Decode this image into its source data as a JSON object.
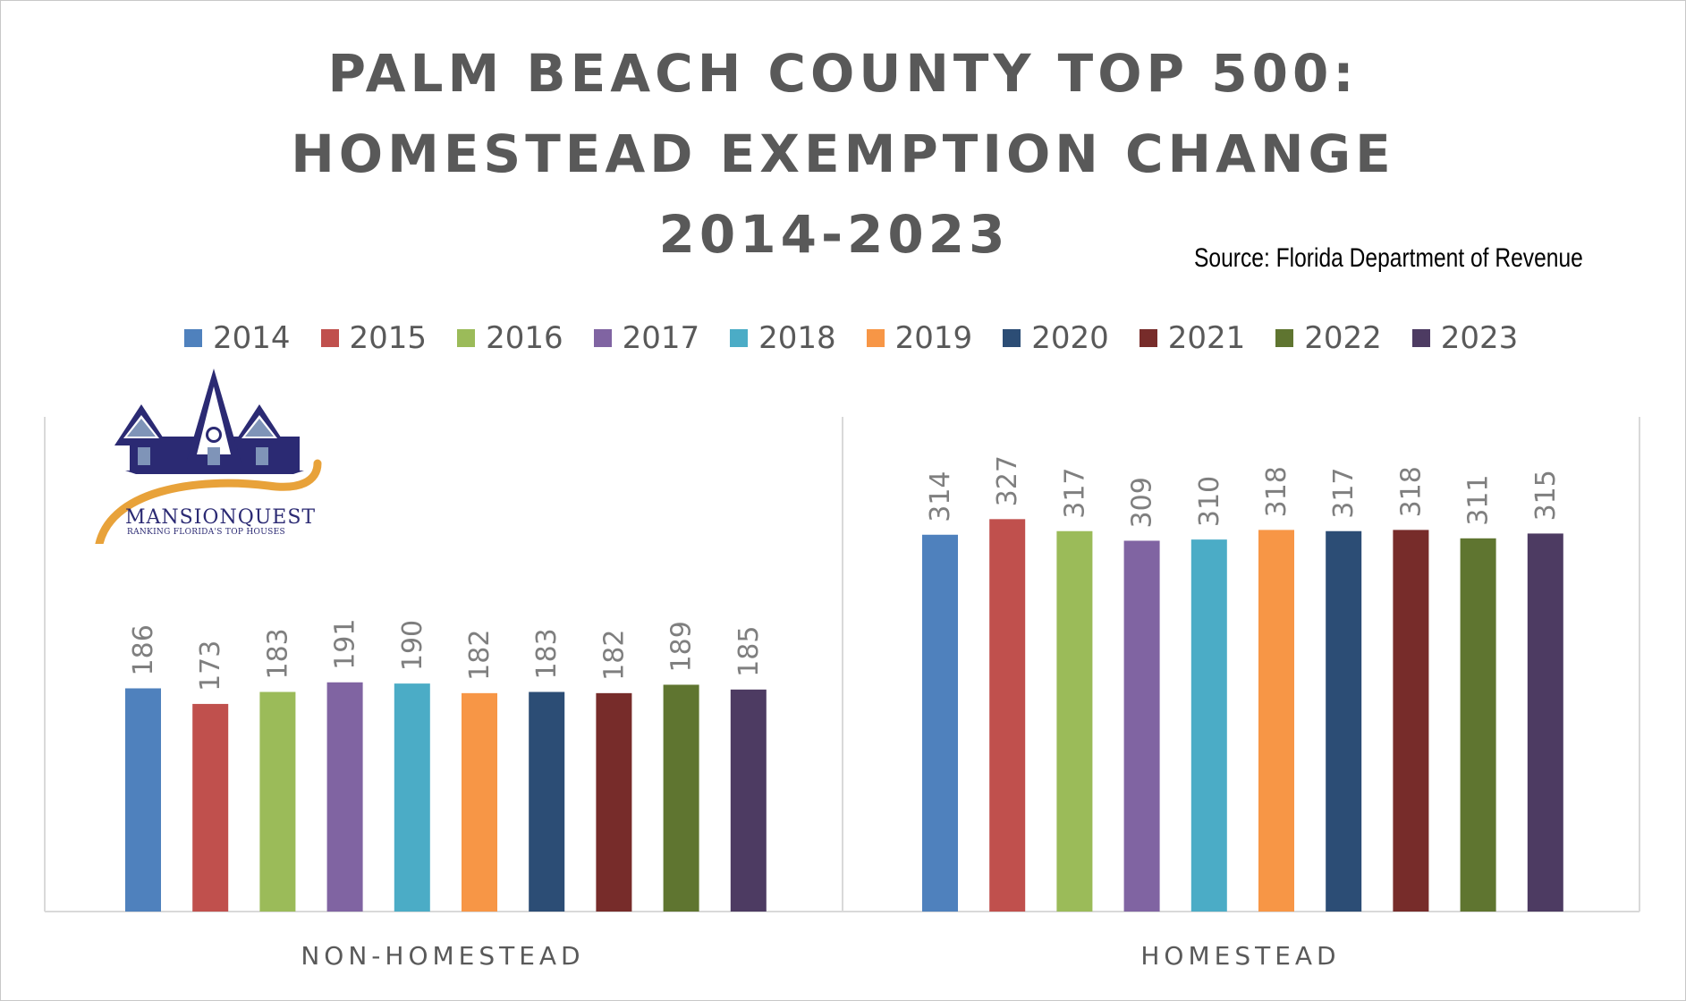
{
  "chart_data": {
    "type": "bar",
    "title_lines": [
      "PALM BEACH COUNTY TOP 500:",
      "HOMESTEAD EXEMPTION CHANGE",
      "2014-2023"
    ],
    "source": "Source: Florida Department of Revenue",
    "categories": [
      "NON-HOMESTEAD",
      "HOMESTEAD"
    ],
    "series": [
      {
        "name": "2014",
        "color": "#4f81bd",
        "values": [
          186,
          314
        ]
      },
      {
        "name": "2015",
        "color": "#c0504d",
        "values": [
          173,
          327
        ]
      },
      {
        "name": "2016",
        "color": "#9bbb59",
        "values": [
          183,
          317
        ]
      },
      {
        "name": "2017",
        "color": "#8064a2",
        "values": [
          191,
          309
        ]
      },
      {
        "name": "2018",
        "color": "#4bacc6",
        "values": [
          190,
          310
        ]
      },
      {
        "name": "2019",
        "color": "#f79646",
        "values": [
          182,
          318
        ]
      },
      {
        "name": "2020",
        "color": "#2c4d75",
        "values": [
          183,
          317
        ]
      },
      {
        "name": "2021",
        "color": "#772c2a",
        "values": [
          182,
          318
        ]
      },
      {
        "name": "2022",
        "color": "#5f7530",
        "values": [
          189,
          311
        ]
      },
      {
        "name": "2023",
        "color": "#4d3b62",
        "values": [
          185,
          315
        ]
      }
    ],
    "ylim": [
      0,
      350
    ],
    "legend_position": "top",
    "data_labels": "vertical",
    "grid": false,
    "xlabel": "",
    "ylabel": ""
  },
  "logo": {
    "name": "MANSIONQUEST",
    "tagline": "RANKING FLORIDA'S TOP HOUSES",
    "colors": {
      "navy": "#2b2a73",
      "gold": "#e8a23a"
    }
  }
}
